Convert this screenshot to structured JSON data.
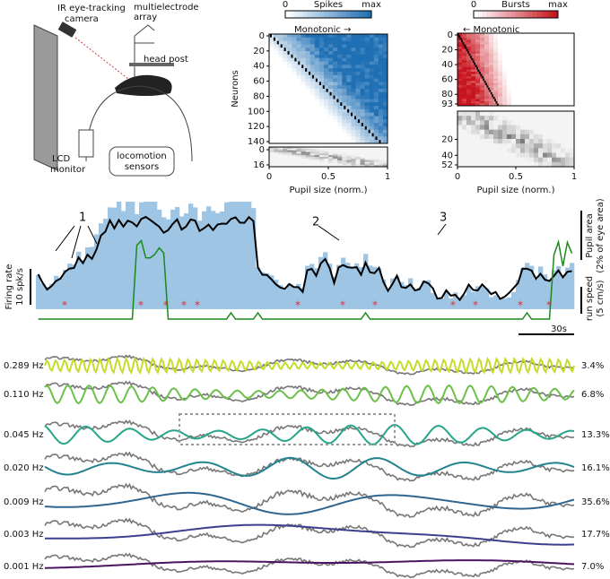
{
  "panel_a": {
    "camera_label": [
      "IR eye-tracking",
      "camera"
    ],
    "array_label": [
      "multielectrode",
      "array"
    ],
    "head_post_label": "head post",
    "monitor_label": [
      "LCD",
      "monitor"
    ],
    "sensors_label": [
      "locomotion",
      "sensors"
    ]
  },
  "panel_b": {
    "colorbar": {
      "min_label": "0",
      "title": "Spikes",
      "max_label": "max"
    },
    "annotation": "Monotonic →",
    "ylabel": "Neurons",
    "yticks": [
      0,
      20,
      40,
      60,
      80,
      100,
      120,
      140
    ],
    "lower_yticks": [
      0,
      16
    ],
    "xticks": [
      0,
      0.5,
      1
    ],
    "xlabel": "Pupil size (norm.)"
  },
  "panel_c": {
    "colorbar": {
      "min_label": "0",
      "title": "Bursts",
      "max_label": "max"
    },
    "annotation": "← Monotonic",
    "yticks": [
      0,
      20,
      40,
      60,
      80,
      93
    ],
    "lower_yticks": [
      20,
      40,
      52
    ],
    "xticks": [
      0,
      0.5,
      1
    ],
    "xlabel": "Pupil size (norm.)"
  },
  "panel_d": {
    "peaks": [
      "1",
      "2",
      "3"
    ],
    "firing_rate_label": "Firing rate",
    "firing_rate_scale": "10 spk/s",
    "pupil_label": "Pupil area",
    "pupil_scale": "(2% of eye area)",
    "run_label": "run speed",
    "run_scale": "(5 cm/s)",
    "time_scale": "30s"
  },
  "panel_e": {
    "rows": [
      {
        "frequency": "0.289 Hz",
        "variance": "3.4%",
        "color": "#c5dc2a"
      },
      {
        "frequency": "0.110 Hz",
        "variance": "6.8%",
        "color": "#6cc04a"
      },
      {
        "frequency": "0.045 Hz",
        "variance": "13.3%",
        "color": "#26a58a"
      },
      {
        "frequency": "0.020 Hz",
        "variance": "16.1%",
        "color": "#23838e"
      },
      {
        "frequency": "0.009 Hz",
        "variance": "35.6%",
        "color": "#2f6690"
      },
      {
        "frequency": "0.003 Hz",
        "variance": "17.7%",
        "color": "#3b3f8f"
      },
      {
        "frequency": "0.001 Hz",
        "variance": "7.0%",
        "color": "#4b1460"
      }
    ]
  }
}
